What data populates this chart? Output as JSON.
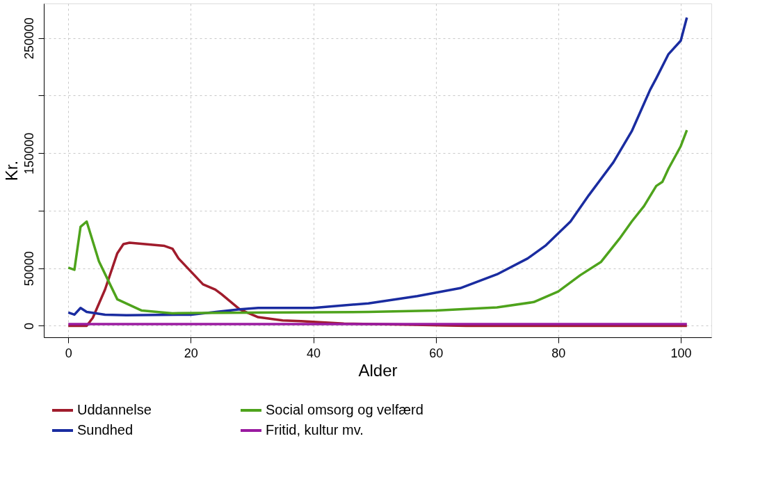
{
  "chart_data": {
    "type": "line",
    "xlabel": "Alder",
    "ylabel": "Kr.",
    "xlim": [
      -4,
      105
    ],
    "ylim": [
      -10000,
      280000
    ],
    "xticks": [
      0,
      20,
      40,
      60,
      80,
      100
    ],
    "yticks": [
      0,
      50000,
      {
        "value": 100000,
        "label": null
      },
      150000,
      {
        "value": 200000,
        "label": null
      },
      250000
    ],
    "grid": true,
    "legend": "bottom",
    "line_style": "solid",
    "marker": "none",
    "series": [
      {
        "name": "Uddannelse",
        "color": "#a01c2c",
        "x": [
          0,
          3,
          4,
          6,
          8,
          9,
          10,
          15.7,
          17,
          18,
          22,
          24,
          25,
          28,
          31,
          35,
          38,
          45,
          55,
          65,
          101
        ],
        "values": [
          0,
          0,
          6900,
          31500,
          63000,
          71000,
          72200,
          69400,
          67000,
          58500,
          36000,
          31500,
          27500,
          14300,
          7500,
          4600,
          4000,
          2000,
          1000,
          0,
          0
        ]
      },
      {
        "name": "Sundhed",
        "color": "#1a2ca0",
        "x": [
          0,
          1,
          2,
          3,
          6,
          9.5,
          20,
          28,
          31,
          40,
          49,
          57,
          64,
          70,
          75,
          78,
          82,
          85,
          89,
          92,
          94,
          95,
          96,
          98,
          100,
          101
        ],
        "values": [
          11500,
          9700,
          15500,
          12000,
          9700,
          9200,
          9700,
          14300,
          15500,
          15500,
          19500,
          25800,
          32700,
          44700,
          58500,
          70000,
          90600,
          113500,
          142000,
          169000,
          193000,
          205000,
          215000,
          236000,
          247700,
          267800
        ]
      },
      {
        "name": "Social omsorg og velfærd",
        "color": "#4ea31c",
        "x": [
          0,
          1,
          2,
          3,
          5,
          8,
          12,
          17,
          30,
          49,
          60,
          70,
          76,
          80,
          83.6,
          87,
          90,
          92,
          94,
          96,
          97,
          98,
          100,
          101
        ],
        "values": [
          50500,
          48700,
          86000,
          90600,
          56000,
          23000,
          13200,
          10900,
          11500,
          12000,
          13200,
          16000,
          20600,
          29800,
          44000,
          55600,
          75700,
          90600,
          104000,
          121500,
          125000,
          136500,
          156000,
          170000
        ]
      },
      {
        "name": "Fritid, kultur mv.",
        "color": "#9a1aa0",
        "x": [
          0,
          101
        ],
        "values": [
          1500,
          1500
        ]
      }
    ]
  }
}
